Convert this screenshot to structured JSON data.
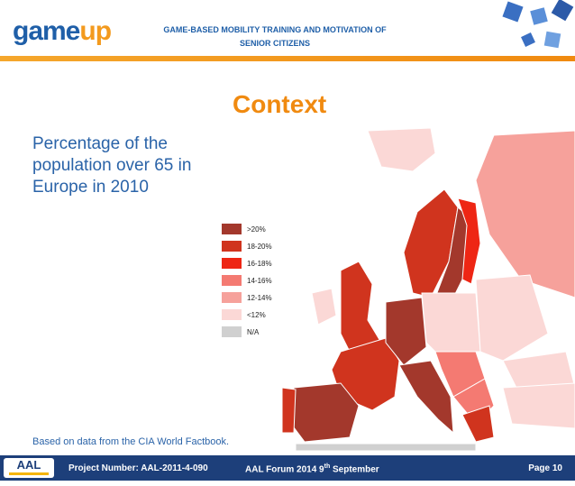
{
  "header": {
    "logo": [
      "game",
      "up"
    ],
    "title": [
      "GAME-BASED MOBILITY TRAINING AND MOTIVATION OF",
      "SENIOR CITIZENS"
    ]
  },
  "slide": {
    "title": "Context",
    "text": [
      "Percentage of the",
      "population over 65 in",
      "Europe in 2010"
    ],
    "source": "Based on data from the CIA World Factbook."
  },
  "legend": {
    "items": [
      {
        "label": ">20%",
        "color": "#a3382c"
      },
      {
        "label": "18-20%",
        "color": "#d0341e"
      },
      {
        "label": "16-18%",
        "color": "#ee2614"
      },
      {
        "label": "14-16%",
        "color": "#f47a72"
      },
      {
        "label": "12-14%",
        "color": "#f6a19b"
      },
      {
        "label": "<12%",
        "color": "#fbd8d6"
      },
      {
        "label": "N/A",
        "color": "#d0d0d0"
      }
    ]
  },
  "footer": {
    "logo": "AAL",
    "project": "Project Number: AAL-2011-4-090",
    "event": [
      "AAL Forum 2014  9",
      "th",
      " September"
    ],
    "page": "Page 10"
  }
}
